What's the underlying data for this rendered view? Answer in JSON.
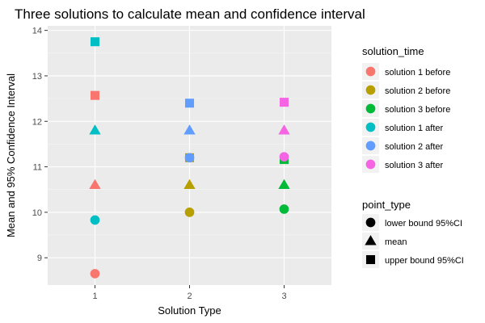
{
  "chart_data": {
    "type": "scatter",
    "title": "Three solutions to calculate mean and confidence interval",
    "xlabel": "Solution Type",
    "ylabel": "Mean and 95% Confidence Interval",
    "x_categories": [
      "1",
      "2",
      "3"
    ],
    "ylim": [
      8.4,
      14.1
    ],
    "y_ticks": [
      9,
      10,
      11,
      12,
      13,
      14
    ],
    "grid": true,
    "legend_placement": "right",
    "color_legend": {
      "title": "solution_time",
      "entries": [
        {
          "label": "solution 1 before",
          "color": "#F8766D"
        },
        {
          "label": "solution 2 before",
          "color": "#B79F00"
        },
        {
          "label": "solution 3 before",
          "color": "#00BA38"
        },
        {
          "label": "solution 1 after",
          "color": "#00BFC4"
        },
        {
          "label": "solution 2 after",
          "color": "#619CFF"
        },
        {
          "label": "solution 3 after",
          "color": "#F564E3"
        }
      ]
    },
    "shape_legend": {
      "title": "point_type",
      "entries": [
        {
          "label": "lower bound 95%CI",
          "shape": "circle"
        },
        {
          "label": "mean",
          "shape": "triangle"
        },
        {
          "label": "upper bound 95%CI",
          "shape": "square"
        }
      ]
    },
    "points": [
      {
        "x": "1",
        "y": 8.65,
        "color": "#F8766D",
        "shape": "circle"
      },
      {
        "x": "1",
        "y": 10.6,
        "color": "#F8766D",
        "shape": "triangle"
      },
      {
        "x": "1",
        "y": 12.57,
        "color": "#F8766D",
        "shape": "square"
      },
      {
        "x": "1",
        "y": 9.83,
        "color": "#00BFC4",
        "shape": "circle"
      },
      {
        "x": "1",
        "y": 11.8,
        "color": "#00BFC4",
        "shape": "triangle"
      },
      {
        "x": "1",
        "y": 13.75,
        "color": "#00BFC4",
        "shape": "square"
      },
      {
        "x": "2",
        "y": 10.0,
        "color": "#B79F00",
        "shape": "circle"
      },
      {
        "x": "2",
        "y": 10.6,
        "color": "#B79F00",
        "shape": "triangle"
      },
      {
        "x": "2",
        "y": 11.2,
        "color": "#B79F00",
        "shape": "square"
      },
      {
        "x": "2",
        "y": 11.2,
        "color": "#619CFF",
        "shape": "circle"
      },
      {
        "x": "2",
        "y": 11.8,
        "color": "#619CFF",
        "shape": "triangle"
      },
      {
        "x": "2",
        "y": 12.4,
        "color": "#619CFF",
        "shape": "square"
      },
      {
        "x": "3",
        "y": 10.07,
        "color": "#00BA38",
        "shape": "circle"
      },
      {
        "x": "3",
        "y": 10.6,
        "color": "#00BA38",
        "shape": "triangle"
      },
      {
        "x": "3",
        "y": 11.16,
        "color": "#00BA38",
        "shape": "square"
      },
      {
        "x": "3",
        "y": 11.22,
        "color": "#F564E3",
        "shape": "circle"
      },
      {
        "x": "3",
        "y": 11.8,
        "color": "#F564E3",
        "shape": "triangle"
      },
      {
        "x": "3",
        "y": 12.42,
        "color": "#F564E3",
        "shape": "square"
      }
    ]
  }
}
